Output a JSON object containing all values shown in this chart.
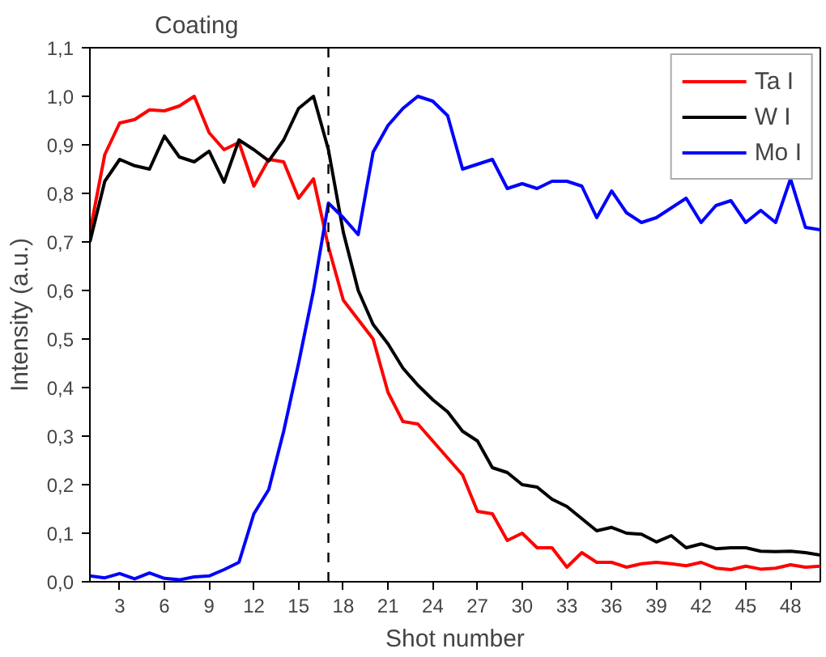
{
  "chart_data": {
    "type": "line",
    "xlabel": "Shot number",
    "ylabel": "Intensity (a.u.)",
    "annotations": [
      "Coating"
    ],
    "x": [
      1,
      2,
      3,
      4,
      5,
      6,
      7,
      8,
      9,
      10,
      11,
      12,
      13,
      14,
      15,
      16,
      17,
      18,
      19,
      20,
      21,
      22,
      23,
      24,
      25,
      26,
      27,
      28,
      29,
      30,
      31,
      32,
      33,
      34,
      35,
      36,
      37,
      38,
      39,
      40,
      41,
      42,
      43,
      44,
      45,
      46,
      47,
      48,
      49,
      50
    ],
    "series": [
      {
        "name": "Ta I",
        "color": "#ff0000",
        "values": [
          0.72,
          0.88,
          0.945,
          0.952,
          0.972,
          0.97,
          0.98,
          1.0,
          0.925,
          0.89,
          0.905,
          0.815,
          0.87,
          0.865,
          0.79,
          0.83,
          0.69,
          0.58,
          0.54,
          0.5,
          0.39,
          0.33,
          0.325,
          0.29,
          0.255,
          0.22,
          0.145,
          0.14,
          0.085,
          0.1,
          0.07,
          0.07,
          0.03,
          0.06,
          0.04,
          0.04,
          0.03,
          0.037,
          0.04,
          0.037,
          0.033,
          0.04,
          0.028,
          0.025,
          0.032,
          0.026,
          0.028,
          0.035,
          0.03,
          0.032
        ]
      },
      {
        "name": "W I",
        "color": "#000000",
        "values": [
          0.7,
          0.825,
          0.87,
          0.857,
          0.85,
          0.918,
          0.875,
          0.865,
          0.887,
          0.823,
          0.91,
          0.89,
          0.867,
          0.91,
          0.975,
          1.0,
          0.89,
          0.72,
          0.6,
          0.53,
          0.49,
          0.44,
          0.405,
          0.375,
          0.35,
          0.31,
          0.29,
          0.235,
          0.225,
          0.2,
          0.195,
          0.17,
          0.155,
          0.13,
          0.105,
          0.112,
          0.1,
          0.098,
          0.082,
          0.095,
          0.07,
          0.078,
          0.068,
          0.07,
          0.07,
          0.063,
          0.062,
          0.063,
          0.06,
          0.055
        ]
      },
      {
        "name": "Mo I",
        "color": "#0000ff",
        "values": [
          0.012,
          0.008,
          0.017,
          0.006,
          0.018,
          0.007,
          0.004,
          0.01,
          0.012,
          0.025,
          0.04,
          0.14,
          0.19,
          0.31,
          0.45,
          0.6,
          0.78,
          0.75,
          0.715,
          0.885,
          0.94,
          0.975,
          1.0,
          0.99,
          0.96,
          0.85,
          0.86,
          0.87,
          0.81,
          0.82,
          0.81,
          0.825,
          0.825,
          0.815,
          0.75,
          0.805,
          0.76,
          0.74,
          0.75,
          0.77,
          0.79,
          0.74,
          0.775,
          0.785,
          0.74,
          0.765,
          0.74,
          0.83,
          0.73,
          0.725
        ]
      }
    ],
    "xlim": [
      1,
      50
    ],
    "xticks": [
      3,
      6,
      9,
      12,
      15,
      18,
      21,
      24,
      27,
      30,
      33,
      36,
      39,
      42,
      45,
      48
    ],
    "ylim": [
      0,
      1.1
    ],
    "yticks": [
      {
        "value": 0,
        "label": "0,0"
      },
      {
        "value": 0.1,
        "label": "0,1"
      },
      {
        "value": 0.2,
        "label": "0,2"
      },
      {
        "value": 0.3,
        "label": "0,3"
      },
      {
        "value": 0.4,
        "label": "0,4"
      },
      {
        "value": 0.5,
        "label": "0,5"
      },
      {
        "value": 0.6,
        "label": "0,6"
      },
      {
        "value": 0.7,
        "label": "0,7"
      },
      {
        "value": 0.8,
        "label": "0,8"
      },
      {
        "value": 0.9,
        "label": "0,9"
      },
      {
        "value": 1.0,
        "label": "1,0"
      },
      {
        "value": 1.1,
        "label": "1,1"
      }
    ],
    "ref_lines": [
      {
        "axis": "x",
        "value": 17,
        "color": "#000000",
        "line_style": "dashed"
      }
    ],
    "legend": "top right",
    "grid": false,
    "marker": "none",
    "line_style": "solid"
  }
}
